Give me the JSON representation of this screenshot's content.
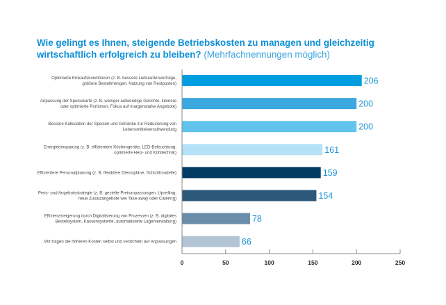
{
  "chart_data": {
    "type": "bar",
    "orientation": "horizontal",
    "title": "Wie gelingt es Ihnen, steigende Betriebskosten zu managen und gleichzeitig wirtschaftlich erfolgreich zu bleiben?",
    "title_line1": "Wie gelingt es Ihnen, steigende Betriebskosten zu managen und gleichzeitig",
    "title_line2": "wirtschaftlich erfolgreich zu bleiben?",
    "subtitle": "(Mehrfachnennungen möglich)",
    "xlabel": "",
    "ylabel": "",
    "xlim": [
      0,
      250
    ],
    "xticks": [
      0,
      50,
      100,
      150,
      200,
      250
    ],
    "grid": false,
    "categories": [
      [
        "Optimierte Einkaufskonditionen (z. B. bessere Lieferantenverträge,",
        "größere Bestellmengen, Nutzung von Restposten)"
      ],
      [
        "Anpassung der Speisekarte (z. B. weniger aufwendige Gerichte, kleinere",
        "oder optimierte Portionen, Fokus auf margenstarke Angebote)"
      ],
      [
        "Bessere Kalkulation der Speisen und Getränke zur Reduzierung von",
        "Lebensmittelverschwendung"
      ],
      [
        "Energieeinsparung (z. B. effizientere Küchengeräte, LED-Beleuchtung,",
        "optimierte Heiz- und Kühltechnik)"
      ],
      [
        "Effizientere Personalplanung (z. B. flexiblere Dienstpläne, Schichtmodelle)"
      ],
      [
        "Preis- und Angebotsstrategie (z. B. gezielte Preisanpassungen, Upselling,",
        "neue Zusatzangebote wie Take-away oder Catering)"
      ],
      [
        "Effizienzsteigerung durch Digitalisierung von Prozessen (z. B. digitales",
        "Bestellsystem, Kassensysteme, automatisierte Lagerverwaltung)"
      ],
      [
        "Wir tragen die höheren Kosten selbst und verzichten auf Anpassungen"
      ]
    ],
    "values": [
      206,
      200,
      200,
      161,
      159,
      154,
      78,
      66
    ],
    "bar_colors": [
      "#009ee0",
      "#3ca8e0",
      "#62c4ec",
      "#b5e2f6",
      "#003c64",
      "#2c587a",
      "#6a8eaa",
      "#b3c5d4"
    ],
    "value_label_color": "#1f95d8",
    "title_color": "#0e8fd6"
  }
}
